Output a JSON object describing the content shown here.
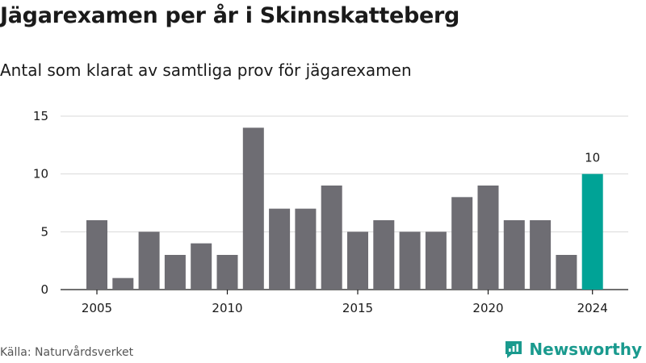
{
  "title": "Jägarexamen per år i Skinnskatteberg",
  "subtitle": "Antal som klarat av samtliga prov för jägarexamen",
  "source": "Källa: Naturvårdsverket",
  "brand": "Newsworthy",
  "colors": {
    "bar": "#6e6d73",
    "highlight": "#00a396",
    "grid": "#d9d9d9",
    "brand": "#1a9a8e"
  },
  "chart_data": {
    "type": "bar",
    "x": [
      2005,
      2006,
      2007,
      2008,
      2009,
      2010,
      2011,
      2012,
      2013,
      2014,
      2015,
      2016,
      2017,
      2018,
      2019,
      2020,
      2021,
      2022,
      2023,
      2024
    ],
    "values": [
      6,
      1,
      5,
      3,
      4,
      3,
      14,
      7,
      7,
      9,
      5,
      6,
      5,
      5,
      8,
      9,
      6,
      6,
      3,
      10
    ],
    "highlight_index": 19,
    "highlight_label": "10",
    "x_ticks": [
      2005,
      2010,
      2015,
      2020,
      2024
    ],
    "y_ticks": [
      0,
      5,
      10,
      15
    ],
    "ylim": [
      0,
      15
    ],
    "grid": true,
    "xlabel": "",
    "ylabel": ""
  }
}
